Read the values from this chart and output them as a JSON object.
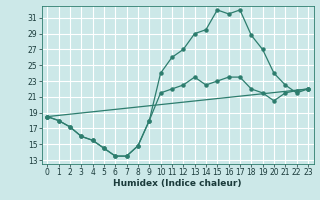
{
  "xlabel": "Humidex (Indice chaleur)",
  "bg_color": "#cce8e8",
  "grid_color": "#ffffff",
  "line_color": "#2d7d6e",
  "xlim": [
    -0.5,
    23.5
  ],
  "ylim": [
    12.5,
    32.5
  ],
  "xticks": [
    0,
    1,
    2,
    3,
    4,
    5,
    6,
    7,
    8,
    9,
    10,
    11,
    12,
    13,
    14,
    15,
    16,
    17,
    18,
    19,
    20,
    21,
    22,
    23
  ],
  "yticks": [
    13,
    15,
    17,
    19,
    21,
    23,
    25,
    27,
    29,
    31
  ],
  "series1_x": [
    0,
    1,
    2,
    3,
    4,
    5,
    6,
    7,
    8,
    9,
    10,
    11,
    12,
    13,
    14,
    15,
    16,
    17,
    18,
    19,
    20,
    21,
    22,
    23
  ],
  "series1_y": [
    18.5,
    18.0,
    17.2,
    16.0,
    15.5,
    14.5,
    13.5,
    13.5,
    14.8,
    18.0,
    24.0,
    26.0,
    27.0,
    29.0,
    29.5,
    32.0,
    31.5,
    32.0,
    28.8,
    27.0,
    24.0,
    22.5,
    21.5,
    22.0
  ],
  "series2_x": [
    0,
    1,
    2,
    3,
    4,
    5,
    6,
    7,
    8,
    9,
    10,
    11,
    12,
    13,
    14,
    15,
    16,
    17,
    18,
    19,
    20,
    21,
    22,
    23
  ],
  "series2_y": [
    18.5,
    18.0,
    17.2,
    16.0,
    15.5,
    14.5,
    13.5,
    13.5,
    14.8,
    18.0,
    21.5,
    22.0,
    22.5,
    23.5,
    22.5,
    23.0,
    23.5,
    23.5,
    22.0,
    21.5,
    20.5,
    21.5,
    21.8,
    22.0
  ],
  "series3_x": [
    0,
    23
  ],
  "series3_y": [
    18.5,
    22.0
  ],
  "figsize": [
    3.2,
    2.0
  ],
  "dpi": 100,
  "tick_labelsize": 5.5,
  "xlabel_fontsize": 6.5
}
